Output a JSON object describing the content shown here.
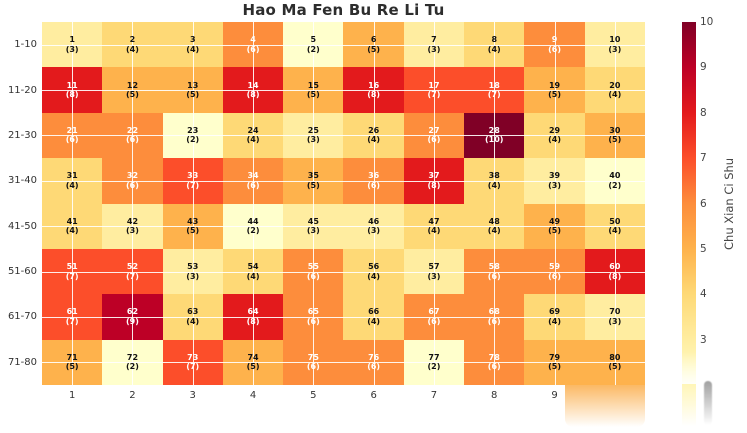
{
  "chart_data": {
    "type": "heatmap",
    "title": "Hao Ma Fen Bu Re Li Tu",
    "row_labels": [
      "1-10",
      "11-20",
      "21-30",
      "31-40",
      "41-50",
      "51-60",
      "61-70",
      "71-80"
    ],
    "col_labels": [
      "1",
      "2",
      "3",
      "4",
      "5",
      "6",
      "7",
      "8",
      "9",
      ""
    ],
    "cells": [
      [
        [
          1,
          3
        ],
        [
          2,
          4
        ],
        [
          3,
          4
        ],
        [
          4,
          6
        ],
        [
          5,
          2
        ],
        [
          6,
          5
        ],
        [
          7,
          3
        ],
        [
          8,
          4
        ],
        [
          9,
          6
        ],
        [
          10,
          3
        ]
      ],
      [
        [
          11,
          8
        ],
        [
          12,
          5
        ],
        [
          13,
          5
        ],
        [
          14,
          8
        ],
        [
          15,
          5
        ],
        [
          16,
          8
        ],
        [
          17,
          7
        ],
        [
          18,
          7
        ],
        [
          19,
          5
        ],
        [
          20,
          4
        ]
      ],
      [
        [
          21,
          6
        ],
        [
          22,
          6
        ],
        [
          23,
          2
        ],
        [
          24,
          4
        ],
        [
          25,
          3
        ],
        [
          26,
          4
        ],
        [
          27,
          6
        ],
        [
          28,
          10
        ],
        [
          29,
          4
        ],
        [
          30,
          5
        ]
      ],
      [
        [
          31,
          4
        ],
        [
          32,
          6
        ],
        [
          33,
          7
        ],
        [
          34,
          6
        ],
        [
          35,
          5
        ],
        [
          36,
          6
        ],
        [
          37,
          8
        ],
        [
          38,
          4
        ],
        [
          39,
          3
        ],
        [
          40,
          2
        ]
      ],
      [
        [
          41,
          4
        ],
        [
          42,
          3
        ],
        [
          43,
          5
        ],
        [
          44,
          2
        ],
        [
          45,
          3
        ],
        [
          46,
          3
        ],
        [
          47,
          4
        ],
        [
          48,
          4
        ],
        [
          49,
          5
        ],
        [
          50,
          4
        ]
      ],
      [
        [
          51,
          7
        ],
        [
          52,
          7
        ],
        [
          53,
          3
        ],
        [
          54,
          4
        ],
        [
          55,
          6
        ],
        [
          56,
          4
        ],
        [
          57,
          3
        ],
        [
          58,
          6
        ],
        [
          59,
          6
        ],
        [
          60,
          8
        ]
      ],
      [
        [
          61,
          7
        ],
        [
          62,
          9
        ],
        [
          63,
          4
        ],
        [
          64,
          8
        ],
        [
          65,
          6
        ],
        [
          66,
          4
        ],
        [
          67,
          6
        ],
        [
          68,
          6
        ],
        [
          69,
          4
        ],
        [
          70,
          3
        ]
      ],
      [
        [
          71,
          5
        ],
        [
          72,
          2
        ],
        [
          73,
          7
        ],
        [
          74,
          5
        ],
        [
          75,
          6
        ],
        [
          76,
          6
        ],
        [
          77,
          2
        ],
        [
          78,
          6
        ],
        [
          79,
          5
        ],
        [
          80,
          5
        ]
      ]
    ],
    "value_range": [
      2,
      10
    ],
    "colormap_name": "YlOrRd",
    "colormap": {
      "2": "#ffffcc",
      "3": "#ffeda0",
      "4": "#fed976",
      "5": "#feb24c",
      "6": "#fd8d3c",
      "7": "#fc4e2a",
      "8": "#e31a1c",
      "9": "#bd0026",
      "10": "#800026"
    },
    "white_text_min": 6,
    "cell_text_colors": {
      "light": "#111111",
      "dark_cells": "#ffffff"
    },
    "colorbar": {
      "label": "Chu Xian Ci Shu",
      "ticks": [
        "10",
        "9",
        "8",
        "7",
        "6",
        "5",
        "4",
        "3"
      ],
      "top_value": 10,
      "bottom_value": 2
    },
    "grid": true,
    "gridline_color": "#ffffff"
  }
}
